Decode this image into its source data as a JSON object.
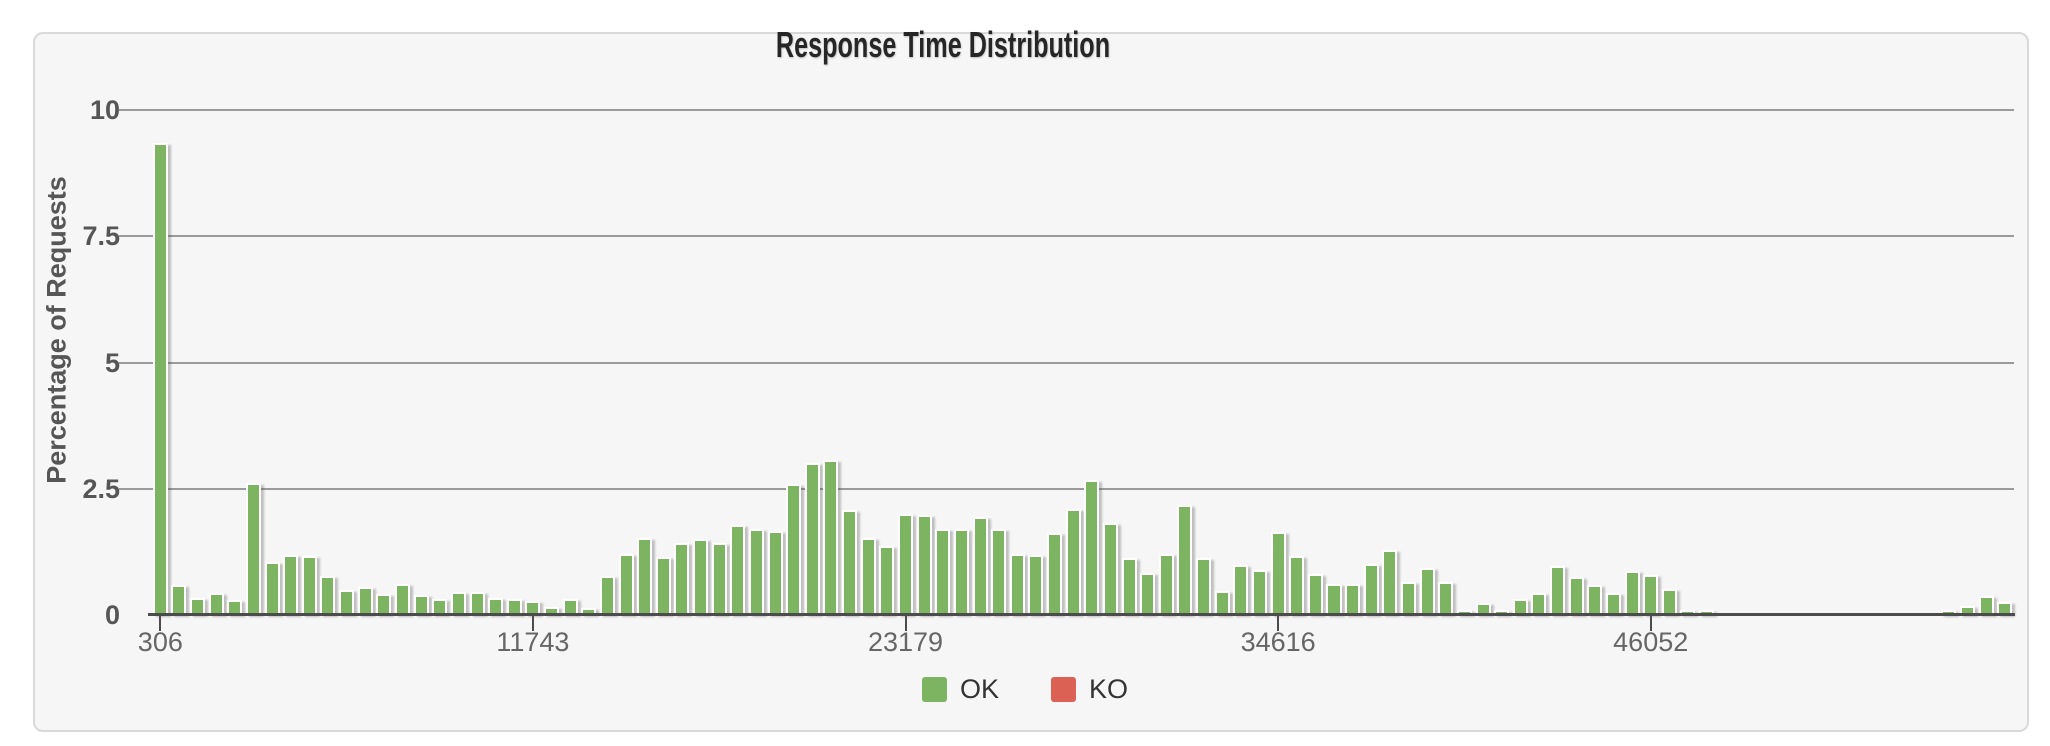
{
  "title": "Response Time Distribution",
  "colors": {
    "page_bg": "#ffffff",
    "panel_bg": "#f6f6f6",
    "panel_border": "#d9d9d9",
    "grid": "#9a9a9a",
    "axis": "#4c4c4c",
    "bar_ok": "#7cb462",
    "bar_ko": "#db6155",
    "bar_outline": "#ffffff",
    "y_tick_text": "#565656",
    "x_tick_text": "#666666",
    "title_text": "#262626",
    "legend_text": "#333333"
  },
  "chart_data": {
    "type": "bar",
    "title": "Response Time Distribution",
    "xlabel": "",
    "ylabel": "Percentage of Requests",
    "ylim": [
      0,
      10
    ],
    "y_ticks": [
      0,
      2.5,
      5,
      7.5,
      10
    ],
    "grid": "horizontal",
    "legend_position": "bottom",
    "x_tick_labels": [
      "306",
      "11743",
      "23179",
      "34616",
      "46052"
    ],
    "x_tick_indices": [
      0,
      20,
      40,
      60,
      80
    ],
    "x_bucket_start": 306,
    "x_bucket_step": 571.8,
    "n_buckets": 100,
    "series": [
      {
        "name": "OK",
        "color": "#7cb462",
        "values": [
          9.35,
          0.6,
          0.34,
          0.44,
          0.3,
          2.62,
          1.05,
          1.18,
          1.16,
          0.77,
          0.5,
          0.56,
          0.42,
          0.62,
          0.39,
          0.31,
          0.45,
          0.45,
          0.34,
          0.31,
          0.27,
          0.16,
          0.31,
          0.14,
          0.78,
          1.2,
          1.53,
          1.14,
          1.42,
          1.51,
          1.43,
          1.78,
          1.71,
          1.66,
          2.6,
          3.02,
          3.06,
          2.08,
          1.52,
          1.36,
          2.01,
          1.98,
          1.71,
          1.71,
          1.94,
          1.71,
          1.21,
          1.18,
          1.63,
          2.1,
          2.68,
          1.83,
          1.13,
          0.83,
          1.21,
          2.18,
          1.13,
          0.48,
          1.0,
          0.89,
          1.64,
          1.16,
          0.81,
          0.62,
          0.62,
          1.01,
          1.28,
          0.66,
          0.94,
          0.66,
          0.05,
          0.24,
          0.05,
          0.32,
          0.44,
          0.98,
          0.76,
          0.59,
          0.43,
          0.88,
          0.8,
          0.52,
          0.08,
          0.05,
          0,
          0,
          0,
          0,
          0,
          0,
          0,
          0,
          0,
          0,
          0,
          0,
          0.08,
          0.17,
          0.37,
          0.26
        ]
      },
      {
        "name": "KO",
        "color": "#db6155",
        "values": []
      }
    ]
  }
}
